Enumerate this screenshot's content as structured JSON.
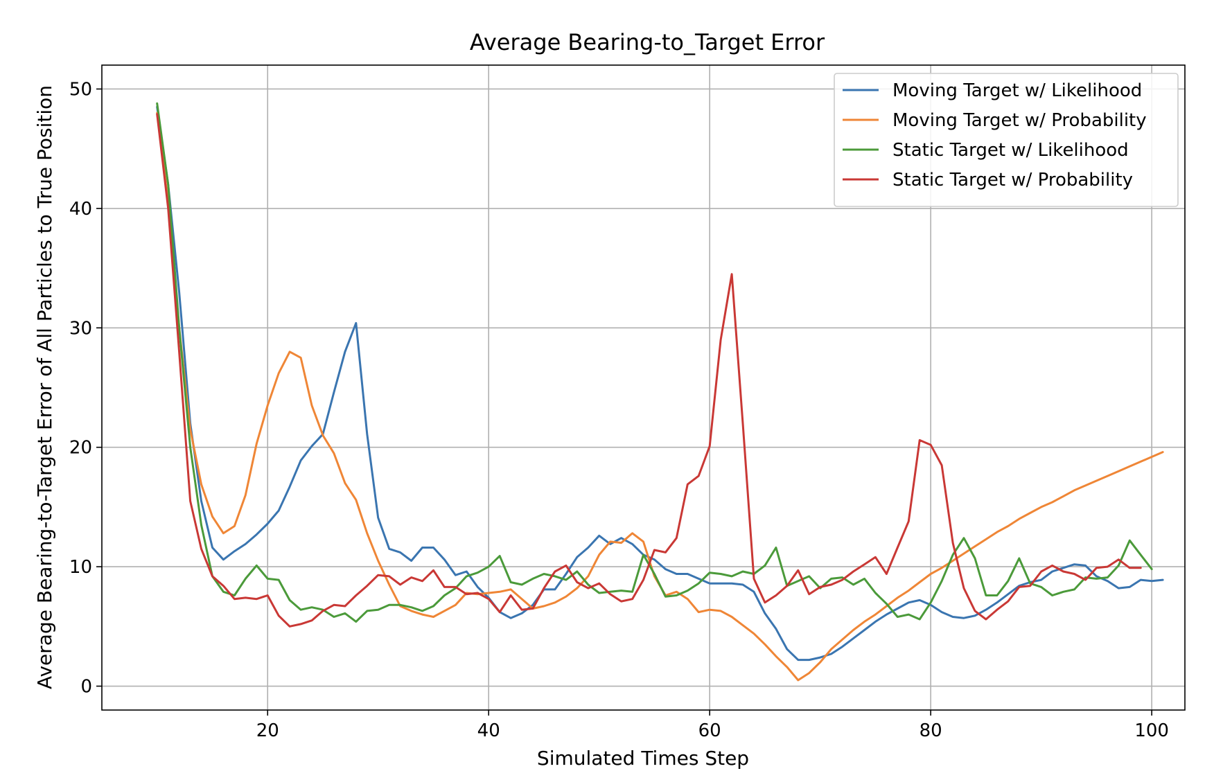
{
  "chart_data": {
    "type": "line",
    "title": "Average Bearing-to_Target Error",
    "xlabel": "Simulated Times Step",
    "ylabel": "Average Bearing-to-Target Error of All Particles to True Position",
    "xlim": [
      5,
      103
    ],
    "ylim": [
      -2,
      52
    ],
    "xticks": [
      20,
      40,
      60,
      80,
      100
    ],
    "yticks": [
      0,
      10,
      20,
      30,
      40,
      50
    ],
    "grid": true,
    "legend_position": "top-right",
    "x_start": 10,
    "x_end": 99,
    "series": [
      {
        "name": "Moving Target w/ Likelihood",
        "color": "#3a75b0",
        "values": [
          48.5,
          42.0,
          33.0,
          22.0,
          15.5,
          11.6,
          10.6,
          11.3,
          11.9,
          12.7,
          13.6,
          14.7,
          16.7,
          18.9,
          20.1,
          21.1,
          24.6,
          28.0,
          30.4,
          21.1,
          14.1,
          11.5,
          11.2,
          10.5,
          11.6,
          11.6,
          10.6,
          9.3,
          9.6,
          8.3,
          7.4,
          6.2,
          5.7,
          6.1,
          6.8,
          8.1,
          8.1,
          9.4,
          10.8,
          11.6,
          12.6,
          11.9,
          12.4,
          11.9,
          11.0,
          10.6,
          9.8,
          9.4,
          9.4,
          9.0,
          8.6,
          8.6,
          8.6,
          8.5,
          7.9,
          6.1,
          4.8,
          3.1,
          2.2,
          2.2,
          2.4,
          2.7,
          3.3,
          4.0,
          4.7,
          5.4,
          6.0,
          6.5,
          7.0,
          7.2,
          6.8,
          6.2,
          5.8,
          5.7,
          5.9,
          6.4,
          7.0,
          7.7,
          8.4,
          8.7,
          8.9,
          9.6,
          9.9,
          10.2,
          10.1,
          9.2,
          8.8,
          8.2,
          8.3,
          8.9,
          8.8,
          8.9
        ]
      },
      {
        "name": "Moving Target w/ Probability",
        "color": "#ef8636",
        "values": [
          48.0,
          40.5,
          30.0,
          21.5,
          16.9,
          14.2,
          12.8,
          13.4,
          16.0,
          20.3,
          23.5,
          26.2,
          28.0,
          27.5,
          23.5,
          21.0,
          19.5,
          17.0,
          15.6,
          12.8,
          10.5,
          8.5,
          6.7,
          6.3,
          6.0,
          5.8,
          6.3,
          6.8,
          7.8,
          7.7,
          7.8,
          7.9,
          8.1,
          7.3,
          6.5,
          6.7,
          7.0,
          7.5,
          8.2,
          9.2,
          11.0,
          12.1,
          12.0,
          12.8,
          12.1,
          9.2,
          7.6,
          7.9,
          7.3,
          6.2,
          6.4,
          6.3,
          5.8,
          5.1,
          4.4,
          3.5,
          2.5,
          1.6,
          0.5,
          1.1,
          2.0,
          3.1,
          3.9,
          4.7,
          5.4,
          6.0,
          6.7,
          7.4,
          8.0,
          8.7,
          9.4,
          9.9,
          10.5,
          11.1,
          11.7,
          12.3,
          12.9,
          13.4,
          14.0,
          14.5,
          15.0,
          15.4,
          15.9,
          16.4,
          16.8,
          17.2,
          17.6,
          18.0,
          18.4,
          18.8,
          19.2,
          19.6
        ]
      },
      {
        "name": "Static Target w/ Likelihood",
        "color": "#4b9a3a",
        "values": [
          48.8,
          42.0,
          30.0,
          20.0,
          13.5,
          9.2,
          7.9,
          7.6,
          9.0,
          10.1,
          9.0,
          8.9,
          7.2,
          6.4,
          6.6,
          6.4,
          5.8,
          6.1,
          5.4,
          6.3,
          6.4,
          6.8,
          6.8,
          6.6,
          6.3,
          6.7,
          7.6,
          8.2,
          9.2,
          9.5,
          10.0,
          10.9,
          8.7,
          8.5,
          9.0,
          9.4,
          9.2,
          8.9,
          9.6,
          8.5,
          7.8,
          7.9,
          8.0,
          7.9,
          11.0,
          9.4,
          7.5,
          7.6,
          8.0,
          8.6,
          9.5,
          9.4,
          9.2,
          9.6,
          9.4,
          10.1,
          11.6,
          8.4,
          8.8,
          9.2,
          8.2,
          9.0,
          9.1,
          8.5,
          9.0,
          7.8,
          6.9,
          5.8,
          6.0,
          5.6,
          7.0,
          8.8,
          11.0,
          12.4,
          10.7,
          7.6,
          7.6,
          8.8,
          10.7,
          8.6,
          8.3,
          7.6,
          7.9,
          8.1,
          9.1,
          9.0,
          9.1,
          10.1,
          12.2,
          11.0,
          9.8
        ]
      },
      {
        "name": "Static Target w/ Probability",
        "color": "#c93835",
        "values": [
          47.9,
          40.0,
          28.0,
          15.5,
          11.5,
          9.2,
          8.4,
          7.3,
          7.4,
          7.3,
          7.6,
          5.9,
          5.0,
          5.2,
          5.5,
          6.3,
          6.8,
          6.7,
          7.6,
          8.4,
          9.3,
          9.2,
          8.5,
          9.1,
          8.8,
          9.7,
          8.3,
          8.3,
          7.7,
          7.8,
          7.3,
          6.2,
          7.6,
          6.4,
          6.5,
          8.2,
          9.6,
          10.1,
          8.7,
          8.2,
          8.6,
          7.7,
          7.1,
          7.3,
          8.9,
          11.4,
          11.2,
          12.4,
          16.9,
          17.6,
          20.1,
          29.0,
          34.5,
          22.0,
          9.0,
          7.0,
          7.6,
          8.4,
          9.7,
          7.7,
          8.3,
          8.5,
          8.9,
          9.6,
          10.2,
          10.8,
          9.4,
          11.6,
          13.8,
          20.6,
          20.2,
          18.5,
          12.0,
          8.2,
          6.3,
          5.6,
          6.4,
          7.1,
          8.3,
          8.4,
          9.6,
          10.1,
          9.6,
          9.4,
          8.9,
          9.9,
          10.0,
          10.6,
          9.9,
          9.9
        ]
      }
    ]
  }
}
